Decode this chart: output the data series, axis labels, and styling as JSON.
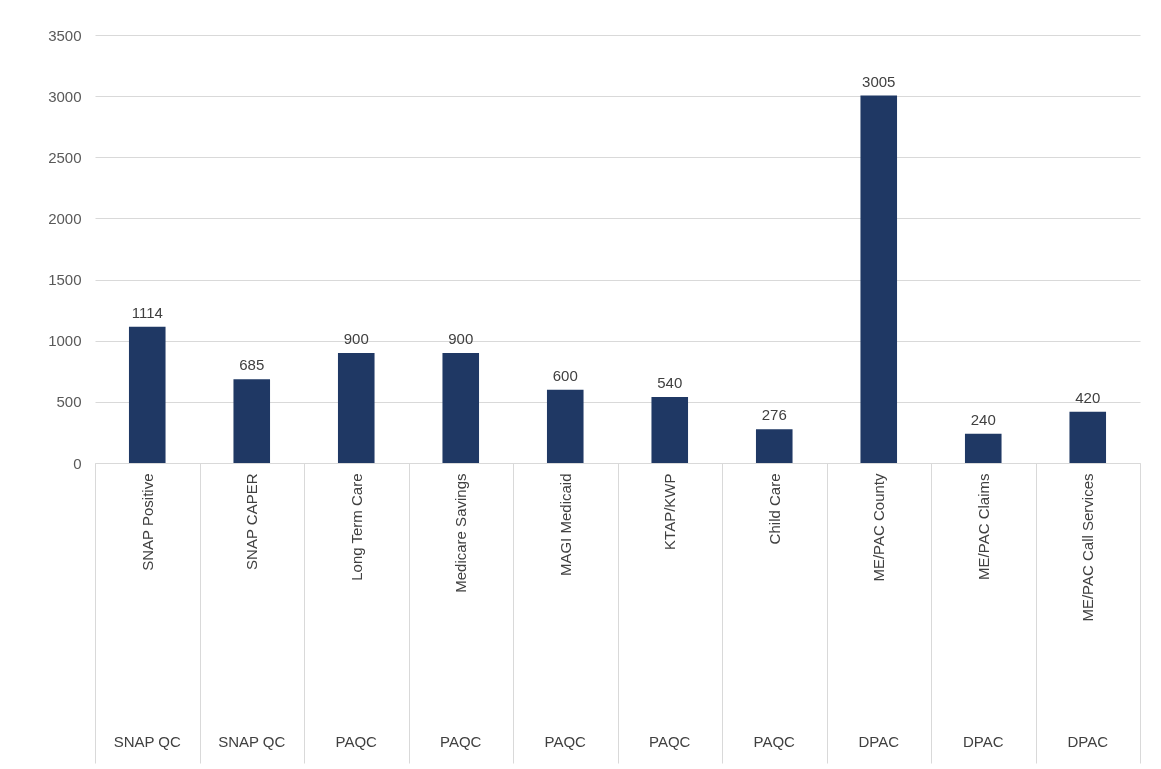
{
  "chart_data": {
    "type": "bar",
    "categories": [
      "SNAP Positive",
      "SNAP CAPER",
      "Long Term Care",
      "Medicare Savings",
      "MAGI Medicaid",
      "KTAP/KWP",
      "Child Care",
      "ME/PAC County",
      "ME/PAC Claims",
      "ME/PAC Call Services"
    ],
    "values": [
      1114,
      685,
      900,
      900,
      600,
      540,
      276,
      3005,
      240,
      420
    ],
    "color": "#1f3864",
    "ylim": [
      0,
      3500
    ],
    "yticks": [
      0,
      500,
      1000,
      1500,
      2000,
      2500,
      3000,
      3500
    ],
    "grid": "y",
    "data_labels": true,
    "annotations": [
      "SNAP QC",
      "SNAP QC",
      "PAQC",
      "PAQC",
      "PAQC",
      "PAQC",
      "PAQC",
      "DPAC",
      "DPAC",
      "DPAC"
    ]
  }
}
